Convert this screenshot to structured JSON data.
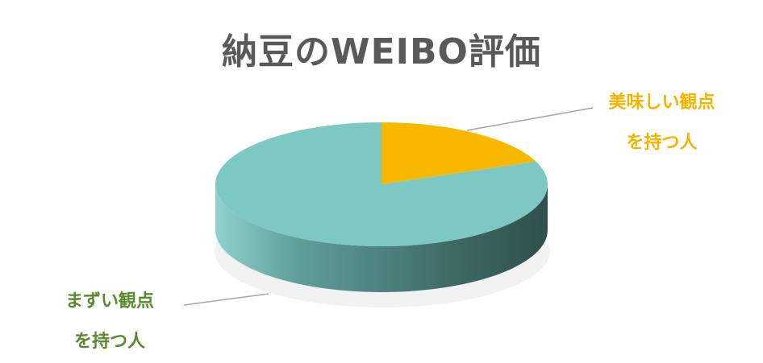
{
  "chart_data": {
    "type": "pie",
    "title": "納豆のWEIBO評価",
    "categories": [
      "美味しい観点を持つ人",
      "まずい観点を持つ人"
    ],
    "values": [
      0.19,
      0.81
    ],
    "three_d": true,
    "slices": [
      {
        "key": "good",
        "label_lines": [
          "美味しい観点",
          "を持つ人"
        ],
        "value": 0.19,
        "color": "#f8b800",
        "label_color": "#f5b400"
      },
      {
        "key": "bad",
        "label_lines": [
          "まずい観点",
          "を持つ人"
        ],
        "value": 0.81,
        "color": "#7ec8c4",
        "label_color": "#5a8a2e"
      }
    ],
    "legend": "none"
  }
}
